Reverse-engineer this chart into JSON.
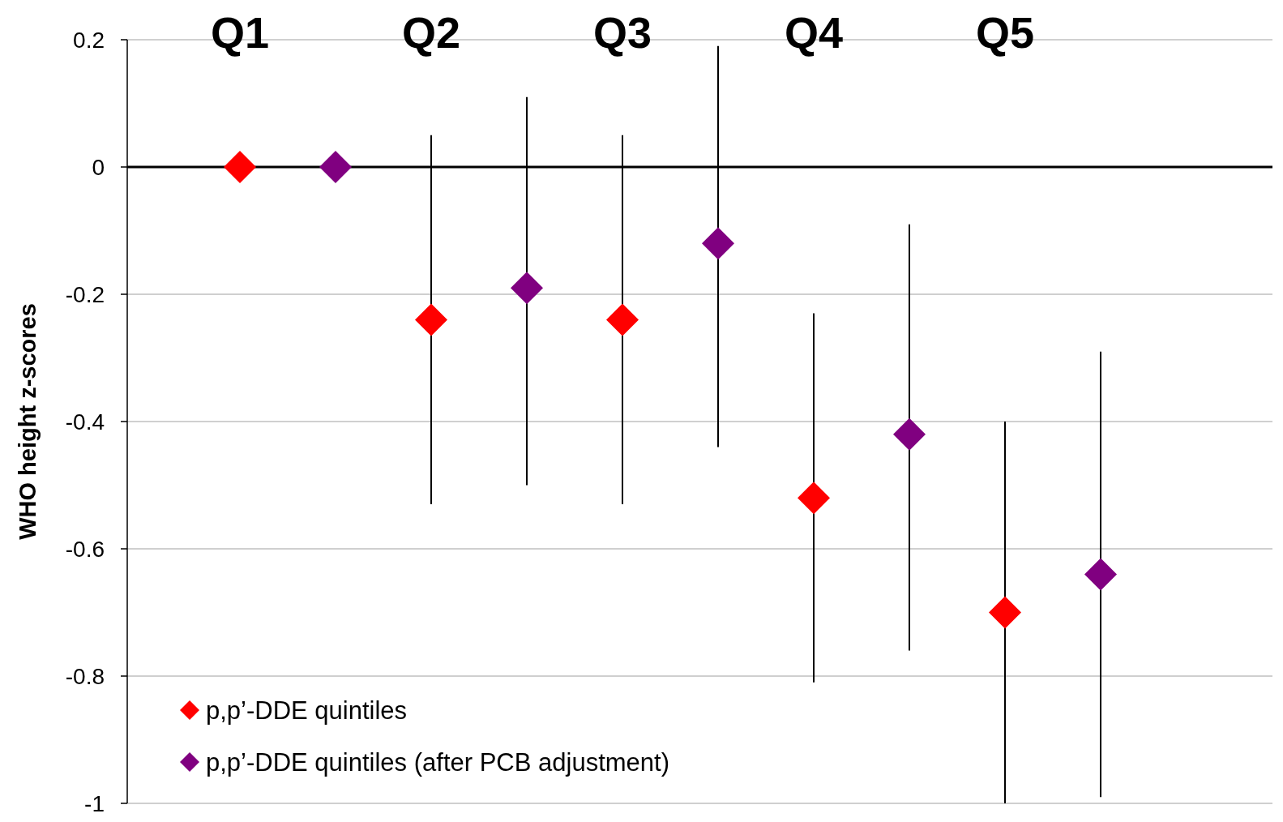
{
  "chart_data": {
    "type": "scatter",
    "ylabel": "WHO height z-scores",
    "categories": [
      "Q1",
      null,
      "Q2",
      null,
      "Q3",
      null,
      "Q4",
      null,
      "Q5",
      null
    ],
    "ylim": [
      -1,
      0.2
    ],
    "yticks": [
      -1,
      -0.8,
      -0.6,
      -0.4,
      -0.2,
      0,
      0.2
    ],
    "grid": "y",
    "legend": "bottom left",
    "marker": "diamond",
    "ref_lines": [
      {
        "axis": "y",
        "value": 0,
        "color": "#000000"
      }
    ],
    "series": [
      {
        "name": "p,p’-DDE quintiles",
        "color": "#ff0000",
        "values": [
          0,
          null,
          -0.24,
          null,
          -0.24,
          null,
          -0.52,
          null,
          -0.7,
          null
        ],
        "errors": [
          null,
          null,
          [
            -0.53,
            0.05
          ],
          null,
          [
            -0.53,
            0.05
          ],
          null,
          [
            -0.81,
            -0.23
          ],
          null,
          [
            -1,
            -0.4
          ],
          null
        ]
      },
      {
        "name": "p,p’-DDE quintiles (after PCB adjustment)",
        "color": "#800080",
        "values": [
          null,
          0,
          null,
          -0.19,
          null,
          -0.12,
          null,
          -0.42,
          null,
          -0.64
        ],
        "errors": [
          null,
          null,
          null,
          [
            -0.5,
            0.11
          ],
          null,
          [
            -0.44,
            0.19
          ],
          null,
          [
            -0.76,
            -0.09
          ],
          null,
          [
            -0.99,
            -0.29
          ]
        ]
      }
    ]
  }
}
